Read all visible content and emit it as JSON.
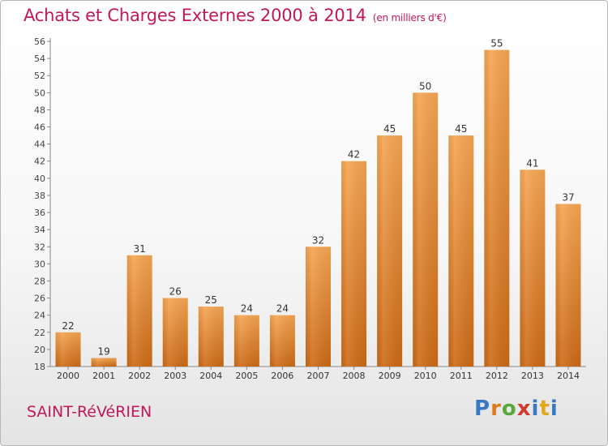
{
  "header": {
    "title": "Achats et Charges Externes 2000 à 2014",
    "subtitle": "(en milliers d'€)"
  },
  "footer": {
    "town": "SAINT-RéVéRIEN",
    "logo": [
      "P",
      "r",
      "o",
      "x",
      "i",
      "t",
      "i"
    ]
  },
  "colors": {
    "title": "#c2185b",
    "bar_top": "#f5a552",
    "bar_bottom": "#cc6a16"
  },
  "chart_data": {
    "type": "bar",
    "title": "Achats et Charges Externes 2000 à 2014",
    "subtitle": "(en milliers d'€)",
    "categories": [
      "2000",
      "2001",
      "2002",
      "2003",
      "2004",
      "2005",
      "2006",
      "2007",
      "2008",
      "2009",
      "2010",
      "2011",
      "2012",
      "2013",
      "2014"
    ],
    "values": [
      22,
      19,
      31,
      26,
      25,
      24,
      24,
      32,
      42,
      45,
      50,
      45,
      55,
      41,
      37
    ],
    "ylim": [
      18,
      56
    ],
    "yticks": [
      18,
      20,
      22,
      24,
      26,
      28,
      30,
      32,
      34,
      36,
      38,
      40,
      42,
      44,
      46,
      48,
      50,
      52,
      54,
      56
    ],
    "grid": false,
    "data_labels": true
  }
}
